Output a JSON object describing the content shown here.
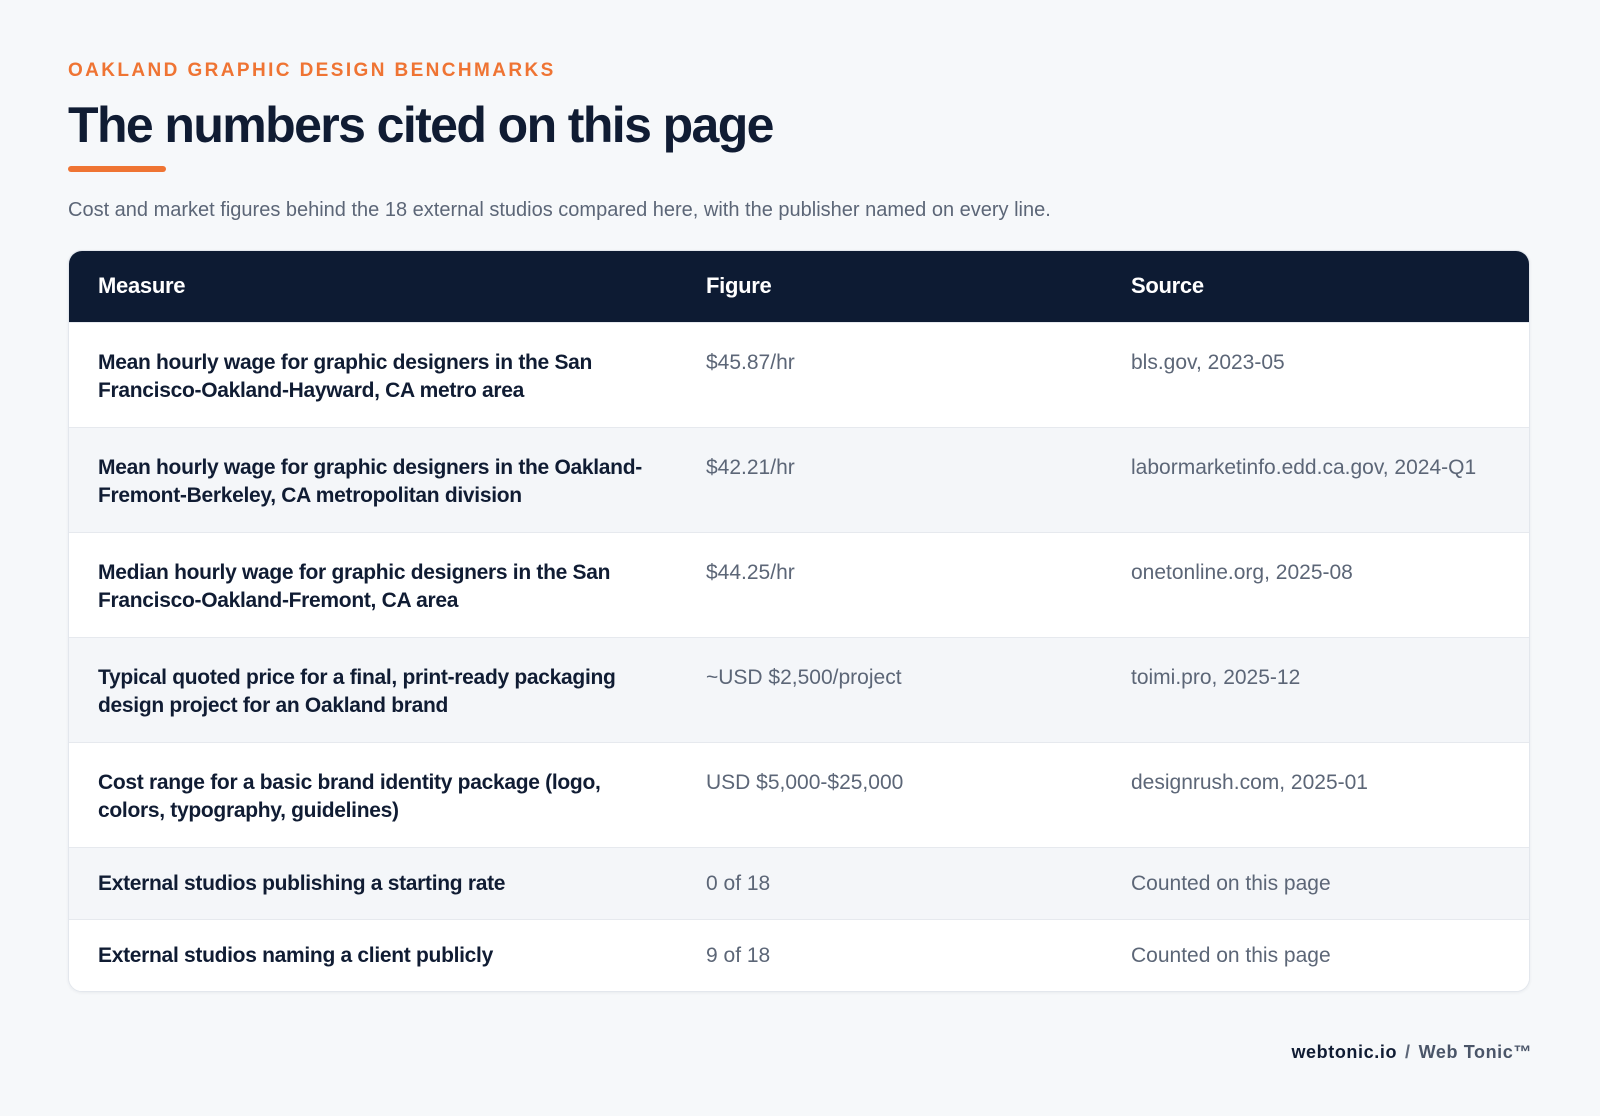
{
  "header": {
    "eyebrow": "OAKLAND GRAPHIC DESIGN BENCHMARKS",
    "title": "The numbers cited on this page",
    "subtitle": "Cost and market figures behind the 18 external studios compared here, with the publisher named on every line."
  },
  "table": {
    "columns": [
      "Measure",
      "Figure",
      "Source"
    ],
    "rows": [
      {
        "measure": "Mean hourly wage for graphic designers in the San Francisco-Oakland-Hayward, CA metro area",
        "figure": "$45.87/hr",
        "source": "bls.gov, 2023-05"
      },
      {
        "measure": "Mean hourly wage for graphic designers in the Oakland-Fremont-Berkeley, CA metropolitan division",
        "figure": "$42.21/hr",
        "source": "labormarketinfo.edd.ca.gov, 2024-Q1"
      },
      {
        "measure": "Median hourly wage for graphic designers in the San Francisco-Oakland-Fremont, CA area",
        "figure": "$44.25/hr",
        "source": "onetonline.org, 2025-08"
      },
      {
        "measure": "Typical quoted price for a final, print-ready packaging design project for an Oakland brand",
        "figure": "~USD $2,500/project",
        "source": "toimi.pro, 2025-12"
      },
      {
        "measure": "Cost range for a basic brand identity package (logo, colors, typography, guidelines)",
        "figure": "USD $5,000-$25,000",
        "source": "designrush.com, 2025-01"
      },
      {
        "measure": "External studios publishing a starting rate",
        "figure": "0 of 18",
        "source": "Counted on this page"
      },
      {
        "measure": "External studios naming a client publicly",
        "figure": "9 of 18",
        "source": "Counted on this page"
      }
    ]
  },
  "footer": {
    "domain": "webtonic.io",
    "separator": "/",
    "brand": "Web Tonic™"
  },
  "colors": {
    "accent": "#ef7433",
    "header_bg": "#0d1b33",
    "text_dark": "#101c33",
    "text_muted": "#5c6677"
  }
}
